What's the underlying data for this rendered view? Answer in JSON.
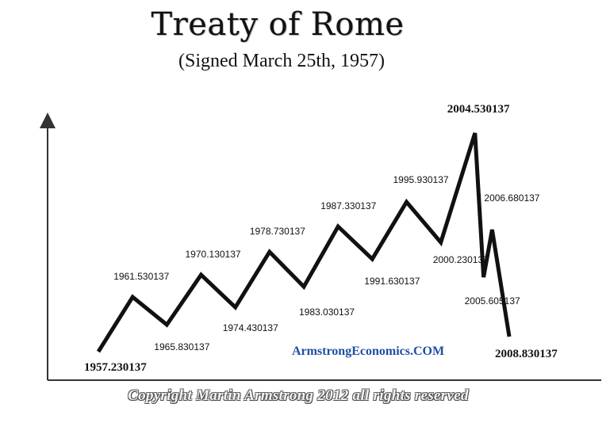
{
  "header": {
    "title": "Treaty of Rome",
    "subtitle": "(Signed March 25th, 1957)"
  },
  "watermark": "ArmstrongEconomics.COM",
  "copyright": "Copyright Martin Armstrong 2012 all rights reserved",
  "colors": {
    "line": "#111111",
    "watermark": "#1f4fa3",
    "axis": "#333333"
  },
  "chart_data": {
    "type": "line",
    "title": "Treaty of Rome",
    "subtitle": "(Signed March 25th, 1957)",
    "xlabel": "",
    "ylabel": "",
    "grid": false,
    "legend": "none",
    "points": [
      {
        "x": 1957.230137,
        "label": "1957.230137",
        "turn": "low"
      },
      {
        "x": 1961.530137,
        "label": "1961.530137",
        "turn": "high"
      },
      {
        "x": 1965.830137,
        "label": "1965.830137",
        "turn": "low"
      },
      {
        "x": 1970.130137,
        "label": "1970.130137",
        "turn": "high"
      },
      {
        "x": 1974.430137,
        "label": "1974.430137",
        "turn": "low"
      },
      {
        "x": 1978.730137,
        "label": "1978.730137",
        "turn": "high"
      },
      {
        "x": 1983.030137,
        "label": "1983.030137",
        "turn": "low"
      },
      {
        "x": 1987.330137,
        "label": "1987.330137",
        "turn": "high"
      },
      {
        "x": 1991.630137,
        "label": "1991.630137",
        "turn": "low"
      },
      {
        "x": 1995.930137,
        "label": "1995.930137",
        "turn": "high"
      },
      {
        "x": 2000.230137,
        "label": "2000.230137",
        "turn": "low"
      },
      {
        "x": 2004.530137,
        "label": "2004.530137",
        "turn": "high"
      },
      {
        "x": 2005.605137,
        "label": "2005.605137",
        "turn": "low"
      },
      {
        "x": 2006.680137,
        "label": "2006.680137",
        "turn": "high"
      },
      {
        "x": 2008.830137,
        "label": "2008.830137",
        "turn": "low"
      }
    ]
  }
}
